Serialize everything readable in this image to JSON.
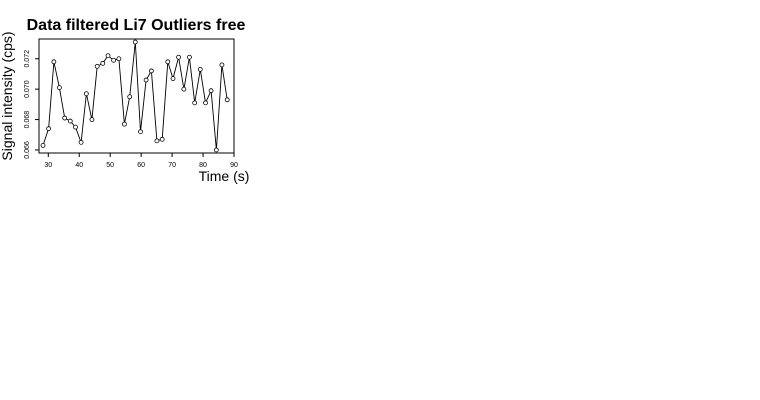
{
  "chart_data": {
    "type": "line",
    "title": "Data filtered Li7 Outliers free",
    "xlabel": "Time (s)",
    "ylabel": "Signal intensity (cps)",
    "xlim": [
      27,
      90
    ],
    "ylim": [
      0.0658,
      0.0733
    ],
    "xticks": [
      30,
      40,
      50,
      60,
      70,
      80,
      90
    ],
    "yticks": [
      0.066,
      0.068,
      0.07,
      0.072
    ],
    "ytick_labels": [
      "0.066",
      "0.068",
      "0.070",
      "0.072"
    ],
    "grid": false,
    "markers": "open-circle",
    "x": [
      28.3,
      30.1,
      31.8,
      33.6,
      35.3,
      37.1,
      38.8,
      40.6,
      42.3,
      44.1,
      45.8,
      47.6,
      49.3,
      51.1,
      52.8,
      54.6,
      56.3,
      58.1,
      59.8,
      61.6,
      63.3,
      65.1,
      66.8,
      68.6,
      70.3,
      72.1,
      73.8,
      75.6,
      77.3,
      79.1,
      80.8,
      82.6,
      84.3,
      86.1,
      87.8
    ],
    "y": [
      0.0663,
      0.0674,
      0.0718,
      0.0701,
      0.0681,
      0.0679,
      0.0675,
      0.0665,
      0.0697,
      0.068,
      0.0715,
      0.0717,
      0.0722,
      0.0719,
      0.072,
      0.0677,
      0.0695,
      0.0731,
      0.0672,
      0.0706,
      0.0712,
      0.0666,
      0.0667,
      0.0718,
      0.0707,
      0.0721,
      0.07,
      0.0721,
      0.0691,
      0.0713,
      0.0691,
      0.0699,
      0.066,
      0.0716,
      0.0693
    ]
  }
}
